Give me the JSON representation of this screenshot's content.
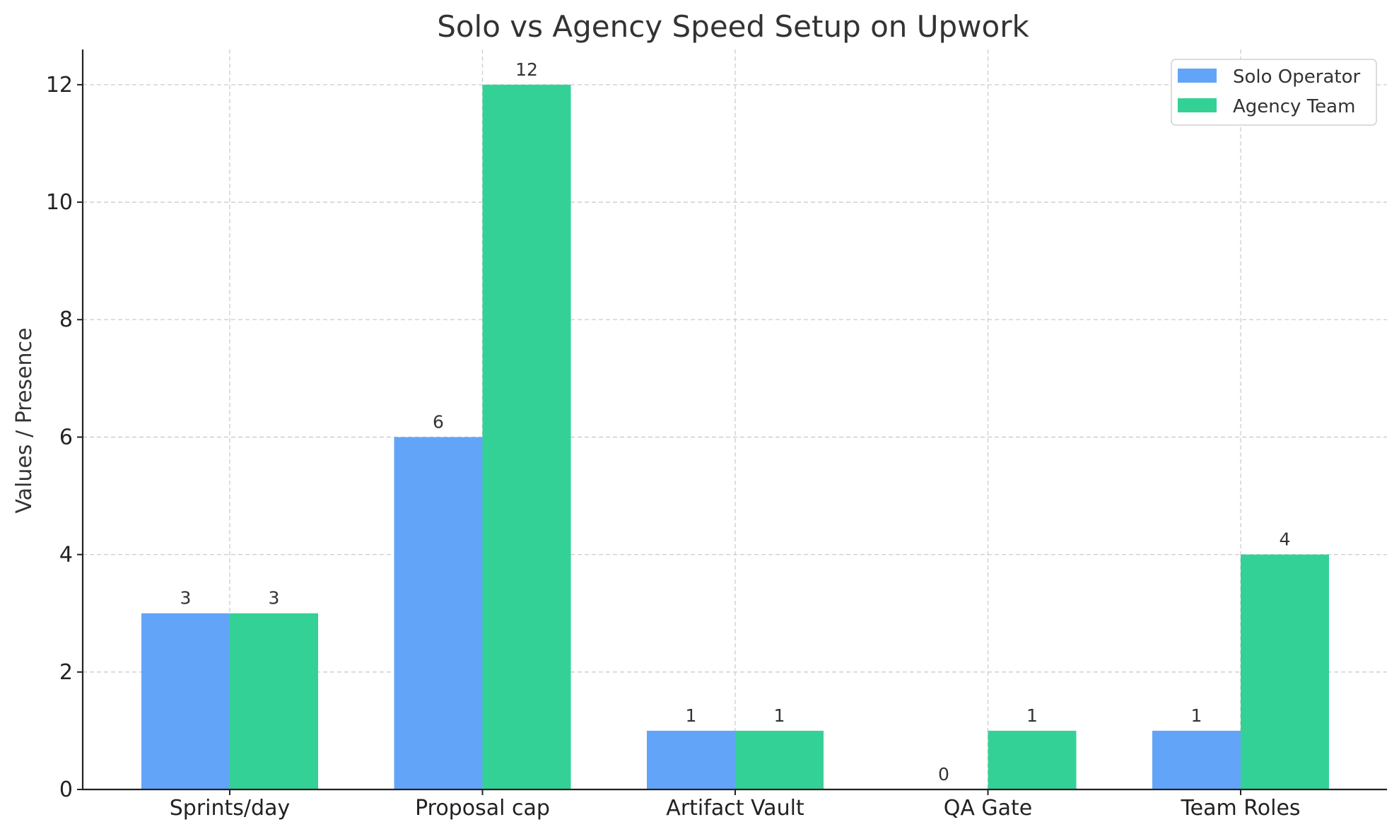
{
  "chart_data": {
    "type": "bar",
    "title": "Solo vs Agency Speed Setup on Upwork",
    "xlabel": "",
    "ylabel": "Values / Presence",
    "categories": [
      "Sprints/day",
      "Proposal cap",
      "Artifact Vault",
      "QA Gate",
      "Team Roles"
    ],
    "series": [
      {
        "name": "Solo Operator",
        "values": [
          3,
          6,
          1,
          0,
          1
        ],
        "color": "#62a5f8"
      },
      {
        "name": "Agency Team",
        "values": [
          3,
          12,
          1,
          1,
          4
        ],
        "color": "#34d196"
      }
    ],
    "ylim": [
      0,
      12.6
    ],
    "yticks": [
      0,
      2,
      4,
      6,
      8,
      10,
      12
    ],
    "grid": true,
    "legend_position": "top-right",
    "data_labels": true
  }
}
